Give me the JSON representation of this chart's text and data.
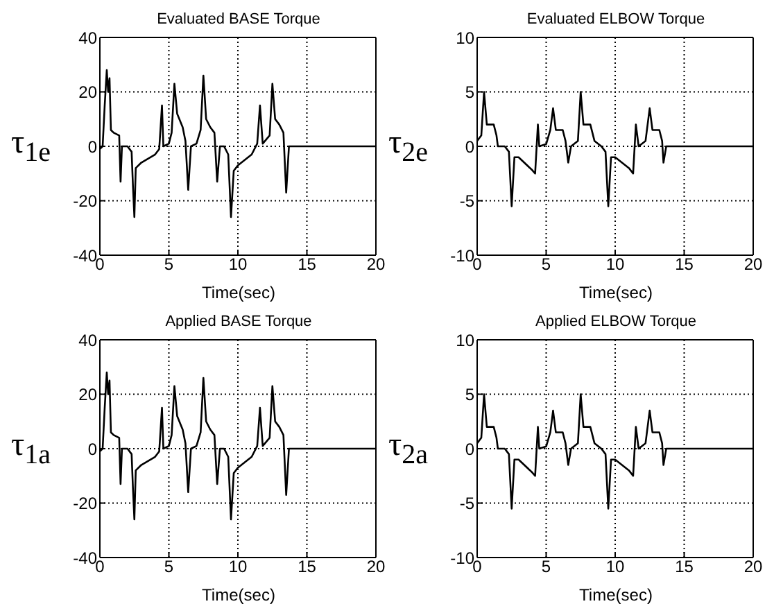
{
  "chart_data": [
    {
      "type": "line",
      "title": "Evaluated BASE Torque",
      "xlabel": "Time(sec)",
      "ylabel": "τ$_{1e}$",
      "xlim": [
        0,
        20
      ],
      "xticks": [
        0,
        5,
        10,
        15,
        20
      ],
      "ylim": [
        -40,
        40
      ],
      "yticks": [
        -40,
        -20,
        0,
        20,
        40
      ],
      "grid": true,
      "marker": "none",
      "line_style": "solid",
      "series": [
        {
          "color": "#000000",
          "x": [
            0,
            0.2,
            0.35,
            0.5,
            0.6,
            0.7,
            0.8,
            1.0,
            1.4,
            1.5,
            1.6,
            2.0,
            2.3,
            2.4,
            2.5,
            2.6,
            3.0,
            4.0,
            4.3,
            4.5,
            4.6,
            5.0,
            5.2,
            5.4,
            5.6,
            6.0,
            6.2,
            6.4,
            6.6,
            7.0,
            7.3,
            7.5,
            7.7,
            8.0,
            8.3,
            8.5,
            8.7,
            9.0,
            9.3,
            9.5,
            9.7,
            10.0,
            11.0,
            11.4,
            11.6,
            11.8,
            12.3,
            12.5,
            12.7,
            13.0,
            13.3,
            13.5,
            13.7,
            14,
            15,
            16,
            17,
            18,
            19,
            20
          ],
          "values": [
            -1,
            0,
            15,
            28,
            20,
            25,
            6,
            5,
            4,
            -13,
            0,
            0,
            -2,
            -15,
            -26,
            -8,
            -6,
            -3,
            -1,
            15,
            0,
            1,
            5,
            23,
            12,
            7,
            2,
            -16,
            0,
            1,
            6,
            26,
            10,
            7,
            5,
            -13,
            0,
            0,
            -3,
            -26,
            -9,
            -7,
            -3,
            1,
            15,
            1,
            4,
            23,
            10,
            8,
            5,
            -17,
            0,
            0,
            0,
            0,
            0,
            0,
            0,
            0
          ]
        }
      ]
    },
    {
      "type": "line",
      "title": "Evaluated ELBOW Torque",
      "xlabel": "Time(sec)",
      "ylabel": "τ$_{2e}$",
      "xlim": [
        0,
        20
      ],
      "xticks": [
        0,
        5,
        10,
        15,
        20
      ],
      "ylim": [
        -10,
        10
      ],
      "yticks": [
        -10,
        -5,
        0,
        5,
        10
      ],
      "grid": true,
      "marker": "none",
      "line_style": "solid",
      "series": [
        {
          "color": "#000000",
          "x": [
            0,
            0.3,
            0.5,
            0.7,
            1.2,
            1.4,
            1.5,
            2.0,
            2.3,
            2.5,
            2.7,
            3.0,
            4.0,
            4.2,
            4.4,
            4.5,
            5.0,
            5.3,
            5.5,
            5.7,
            6.2,
            6.4,
            6.6,
            6.8,
            7.3,
            7.5,
            7.7,
            8.2,
            8.5,
            9.0,
            9.3,
            9.5,
            9.7,
            10.0,
            11.0,
            11.3,
            11.5,
            11.7,
            12.2,
            12.5,
            12.7,
            13.2,
            13.4,
            13.5,
            13.7,
            15,
            20
          ],
          "values": [
            0.5,
            1,
            5,
            2,
            2,
            1,
            0,
            0,
            -0.5,
            -5.5,
            -1,
            -1,
            -2.2,
            -2.5,
            2,
            0,
            0.2,
            1.5,
            3.5,
            1.5,
            1.5,
            0.5,
            -1.5,
            0,
            0.5,
            5,
            2,
            2,
            0.5,
            0,
            -0.5,
            -5.5,
            -1,
            -1,
            -2,
            -2.5,
            2,
            0,
            0.5,
            3.5,
            1.5,
            1.5,
            0.5,
            -1.5,
            0,
            0,
            0
          ]
        }
      ]
    },
    {
      "type": "line",
      "title": "Applied BASE Torque",
      "xlabel": "Time(sec)",
      "ylabel": "τ$_{1a}$",
      "xlim": [
        0,
        20
      ],
      "xticks": [
        0,
        5,
        10,
        15,
        20
      ],
      "ylim": [
        -40,
        40
      ],
      "yticks": [
        -40,
        -20,
        0,
        20,
        40
      ],
      "grid": true,
      "marker": "none",
      "line_style": "solid",
      "series": [
        {
          "color": "#000000",
          "x": [
            0,
            0.2,
            0.35,
            0.5,
            0.6,
            0.7,
            0.8,
            1.0,
            1.4,
            1.5,
            1.6,
            2.0,
            2.3,
            2.4,
            2.5,
            2.6,
            3.0,
            4.0,
            4.3,
            4.5,
            4.6,
            5.0,
            5.2,
            5.4,
            5.6,
            6.0,
            6.2,
            6.4,
            6.6,
            7.0,
            7.3,
            7.5,
            7.7,
            8.0,
            8.3,
            8.5,
            8.7,
            9.0,
            9.3,
            9.5,
            9.7,
            10.0,
            11.0,
            11.4,
            11.6,
            11.8,
            12.3,
            12.5,
            12.7,
            13.0,
            13.3,
            13.5,
            13.7,
            14,
            15,
            16,
            17,
            18,
            19,
            20
          ],
          "values": [
            -1,
            0,
            15,
            28,
            20,
            25,
            6,
            5,
            4,
            -13,
            0,
            0,
            -2,
            -15,
            -26,
            -8,
            -6,
            -3,
            -1,
            15,
            0,
            1,
            5,
            23,
            12,
            7,
            2,
            -16,
            0,
            1,
            6,
            26,
            10,
            7,
            5,
            -13,
            0,
            0,
            -3,
            -26,
            -9,
            -7,
            -3,
            1,
            15,
            1,
            4,
            23,
            10,
            8,
            5,
            -17,
            0,
            0,
            0,
            0,
            0,
            0,
            0,
            0
          ]
        }
      ]
    },
    {
      "type": "line",
      "title": "Applied ELBOW Torque",
      "xlabel": "Time(sec)",
      "ylabel": "τ$_{2a}$",
      "xlim": [
        0,
        20
      ],
      "xticks": [
        0,
        5,
        10,
        15,
        20
      ],
      "ylim": [
        -10,
        10
      ],
      "yticks": [
        -10,
        -5,
        0,
        5,
        10
      ],
      "grid": true,
      "marker": "none",
      "line_style": "solid",
      "series": [
        {
          "color": "#000000",
          "x": [
            0,
            0.3,
            0.5,
            0.7,
            1.2,
            1.4,
            1.5,
            2.0,
            2.3,
            2.5,
            2.7,
            3.0,
            4.0,
            4.2,
            4.4,
            4.5,
            5.0,
            5.3,
            5.5,
            5.7,
            6.2,
            6.4,
            6.6,
            6.8,
            7.3,
            7.5,
            7.7,
            8.2,
            8.5,
            9.0,
            9.3,
            9.5,
            9.7,
            10.0,
            11.0,
            11.3,
            11.5,
            11.7,
            12.2,
            12.5,
            12.7,
            13.2,
            13.4,
            13.5,
            13.7,
            15,
            20
          ],
          "values": [
            0.5,
            1,
            5,
            2,
            2,
            1,
            0,
            0,
            -0.5,
            -5.5,
            -1,
            -1,
            -2.2,
            -2.5,
            2,
            0,
            0.2,
            1.5,
            3.5,
            1.5,
            1.5,
            0.5,
            -1.5,
            0,
            0.5,
            5,
            2,
            2,
            0.5,
            0,
            -0.5,
            -5.5,
            -1,
            -1,
            -2,
            -2.5,
            2,
            0,
            0.5,
            3.5,
            1.5,
            1.5,
            0.5,
            -1.5,
            0,
            0,
            0
          ]
        }
      ]
    }
  ]
}
